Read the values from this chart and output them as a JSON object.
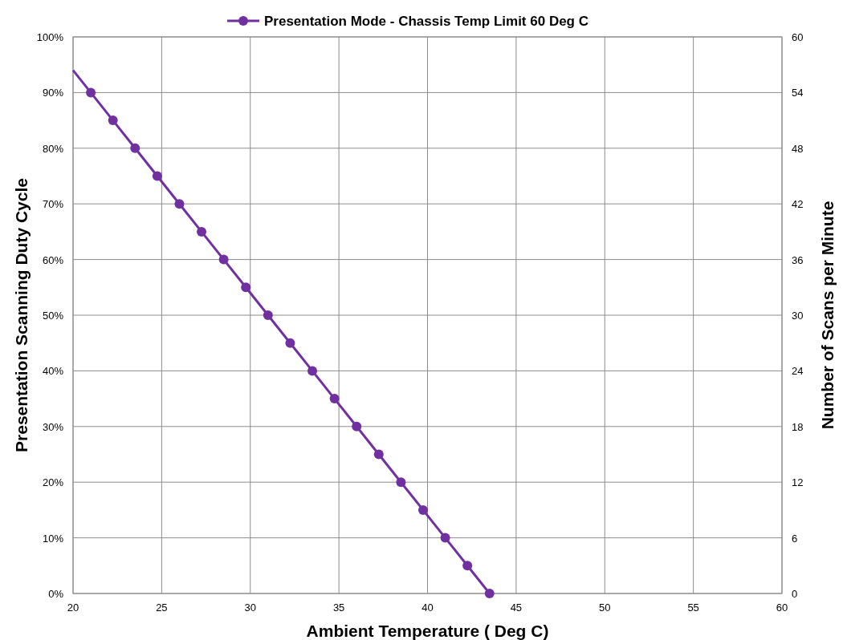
{
  "chart_data": {
    "type": "line",
    "xlabel": "Ambient Temperature ( Deg C)",
    "ylabel": "Presentation Scanning Duty Cycle",
    "y2label": "Number of Scans per Minute",
    "xlim": [
      20,
      60
    ],
    "xticks": [
      20,
      25,
      30,
      35,
      40,
      45,
      50,
      55,
      60
    ],
    "ylim": [
      0,
      100
    ],
    "yticks": [
      {
        "value": 0,
        "label": "0%"
      },
      {
        "value": 10,
        "label": "10%"
      },
      {
        "value": 20,
        "label": "20%"
      },
      {
        "value": 30,
        "label": "30%"
      },
      {
        "value": 40,
        "label": "40%"
      },
      {
        "value": 50,
        "label": "50%"
      },
      {
        "value": 60,
        "label": "60%"
      },
      {
        "value": 70,
        "label": "70%"
      },
      {
        "value": 80,
        "label": "80%"
      },
      {
        "value": 90,
        "label": "90%"
      },
      {
        "value": 100,
        "label": "100%"
      }
    ],
    "y2lim": [
      0,
      60
    ],
    "y2ticks": [
      0,
      6,
      12,
      18,
      24,
      30,
      36,
      42,
      48,
      54,
      60
    ],
    "grid": true,
    "legend": "top",
    "marker": "circle",
    "line_style": "solid",
    "series": [
      {
        "name": "Presentation Mode - Chassis Temp Limit 60 Deg C",
        "color": "#7030a0",
        "x": [
          21,
          22.25,
          23.5,
          24.75,
          26,
          27.25,
          28.5,
          29.75,
          31,
          32.25,
          33.5,
          34.75,
          36,
          37.25,
          38.5,
          39.75,
          41,
          42.25,
          43.5
        ],
        "values": [
          90,
          85,
          80,
          75,
          70,
          65,
          60,
          55,
          50,
          45,
          40,
          35,
          30,
          25,
          20,
          15,
          10,
          5,
          0
        ]
      },
      {
        "type": "line",
        "marker": "none",
        "color": "#7030a0",
        "x": [
          20,
          21
        ],
        "values": [
          94,
          90
        ]
      }
    ]
  }
}
